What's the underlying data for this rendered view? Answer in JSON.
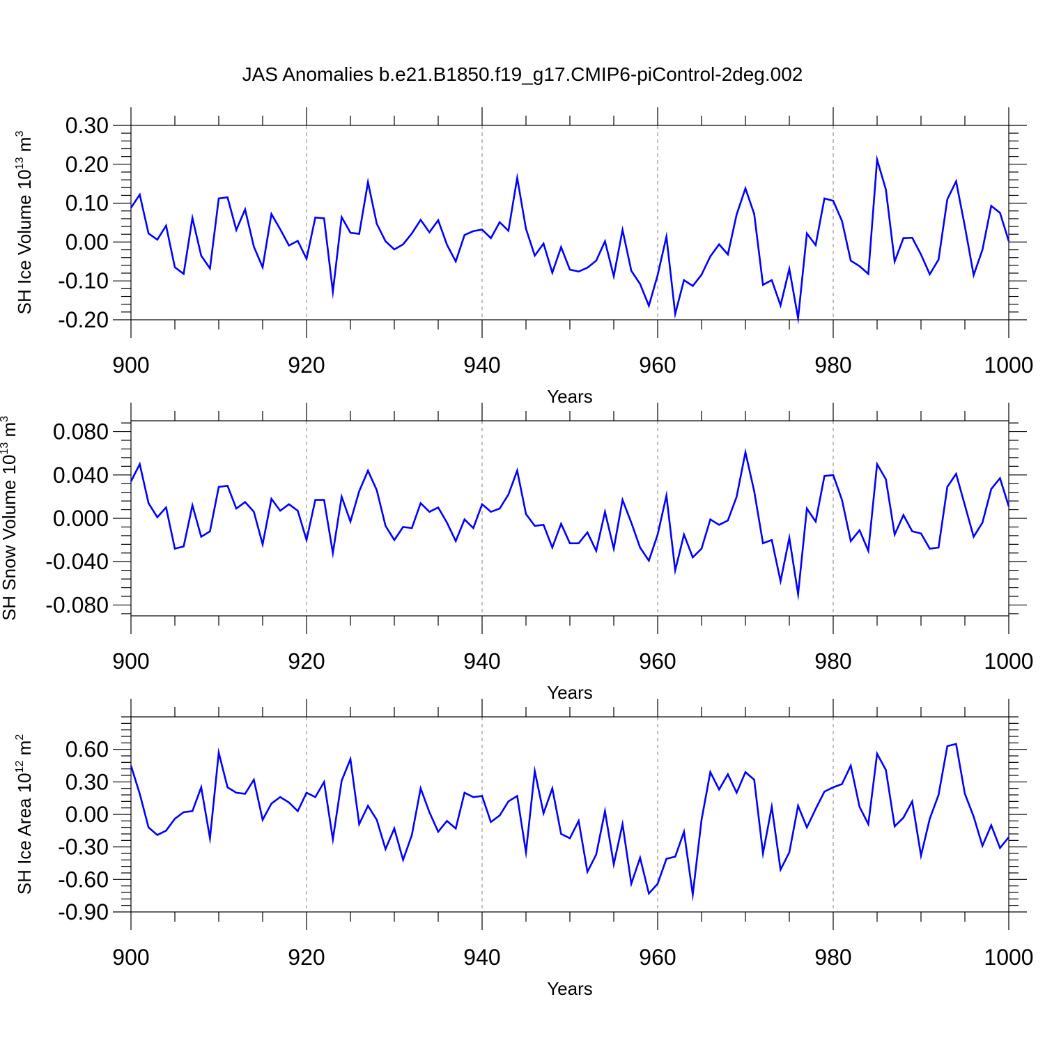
{
  "title": "JAS Anomalies b.e21.B1850.f19_g17.CMIP6-piControl-2deg.002",
  "colors": {
    "line": "#0000ff",
    "axes": "#000000",
    "grid": "#7f7f7f"
  },
  "chart_data": [
    {
      "type": "line",
      "ylabel": {
        "main": "SH Ice Volume 10",
        "sup": "13",
        "unit": " m",
        "unit_sup": "3"
      },
      "xlabel": "Years",
      "xlim": [
        900,
        1000
      ],
      "ylim": [
        -0.2,
        0.3
      ],
      "yticks": [
        "-0.20",
        "-0.10",
        "0.00",
        "0.10",
        "0.20",
        "0.30"
      ],
      "ytick_values": [
        -0.2,
        -0.1,
        0.0,
        0.1,
        0.2,
        0.3
      ],
      "xticks": [
        "900",
        "920",
        "940",
        "960",
        "980",
        "1000"
      ],
      "xtick_values": [
        900,
        920,
        940,
        960,
        980,
        1000
      ],
      "grid": "vertical dashed at labeled x ticks",
      "series": [
        {
          "x_start": 900,
          "values": [
            0.088,
            0.122,
            0.022,
            0.006,
            0.042,
            -0.065,
            -0.082,
            0.062,
            -0.035,
            -0.068,
            0.112,
            0.115,
            0.031,
            0.084,
            -0.012,
            -0.065,
            0.072,
            0.033,
            -0.009,
            0.003,
            -0.043,
            0.063,
            0.061,
            -0.128,
            0.064,
            0.024,
            0.021,
            0.154,
            0.047,
            0.002,
            -0.019,
            -0.006,
            0.022,
            0.057,
            0.025,
            0.056,
            -0.007,
            -0.05,
            0.018,
            0.028,
            0.032,
            0.01,
            0.051,
            0.029,
            0.165,
            0.034,
            -0.035,
            -0.004,
            -0.079,
            -0.013,
            -0.071,
            -0.076,
            -0.066,
            -0.048,
            0.002,
            -0.088,
            0.031,
            -0.074,
            -0.108,
            -0.164,
            -0.085,
            0.014,
            -0.185,
            -0.098,
            -0.113,
            -0.084,
            -0.037,
            -0.006,
            -0.032,
            0.071,
            0.138,
            0.072,
            -0.11,
            -0.098,
            -0.163,
            -0.069,
            -0.196,
            0.022,
            -0.008,
            0.112,
            0.106,
            0.054,
            -0.048,
            -0.062,
            -0.082,
            0.212,
            0.135,
            -0.05,
            0.01,
            0.011,
            -0.032,
            -0.083,
            -0.045,
            0.11,
            0.156,
            0.04,
            -0.085,
            -0.02,
            0.093,
            0.075,
            0.002
          ]
        }
      ]
    },
    {
      "type": "line",
      "ylabel": {
        "main": "SH Snow Volume 10",
        "sup": "13",
        "unit": " m",
        "unit_sup": "3"
      },
      "xlabel": "Years",
      "xlim": [
        900,
        1000
      ],
      "ylim": [
        -0.09,
        0.09
      ],
      "yticks": [
        "-0.080",
        "-0.040",
        "0.000",
        "0.040",
        "0.080"
      ],
      "ytick_values": [
        -0.08,
        -0.04,
        0.0,
        0.04,
        0.08
      ],
      "xticks": [
        "900",
        "920",
        "940",
        "960",
        "980",
        "1000"
      ],
      "xtick_values": [
        900,
        920,
        940,
        960,
        980,
        1000
      ],
      "grid": "vertical dashed at labeled x ticks",
      "series": [
        {
          "x_start": 900,
          "values": [
            0.034,
            0.05,
            0.014,
            0.001,
            0.01,
            -0.028,
            -0.026,
            0.012,
            -0.017,
            -0.012,
            0.029,
            0.03,
            0.009,
            0.015,
            0.006,
            -0.024,
            0.018,
            0.007,
            0.013,
            0.007,
            -0.02,
            0.017,
            0.017,
            -0.032,
            0.02,
            -0.003,
            0.025,
            0.044,
            0.026,
            -0.007,
            -0.02,
            -0.008,
            -0.009,
            0.014,
            0.006,
            0.01,
            -0.004,
            -0.021,
            -0.001,
            -0.009,
            0.013,
            0.006,
            0.009,
            0.022,
            0.044,
            0.004,
            -0.007,
            -0.006,
            -0.027,
            -0.005,
            -0.023,
            -0.023,
            -0.013,
            -0.03,
            0.006,
            -0.028,
            0.017,
            -0.004,
            -0.027,
            -0.039,
            -0.015,
            0.021,
            -0.048,
            -0.015,
            -0.036,
            -0.028,
            -0.001,
            -0.006,
            -0.002,
            0.02,
            0.061,
            0.025,
            -0.023,
            -0.02,
            -0.058,
            -0.018,
            -0.07,
            0.009,
            -0.003,
            0.039,
            0.04,
            0.017,
            -0.021,
            -0.011,
            -0.03,
            0.05,
            0.036,
            -0.015,
            0.003,
            -0.012,
            -0.014,
            -0.028,
            -0.027,
            0.029,
            0.041,
            0.012,
            -0.017,
            -0.004,
            0.027,
            0.037,
            0.011
          ]
        }
      ]
    },
    {
      "type": "line",
      "ylabel": {
        "main": "SH Ice Area 10",
        "sup": "12",
        "unit": " m",
        "unit_sup": "2"
      },
      "xlabel": "Years",
      "xlim": [
        900,
        1000
      ],
      "ylim": [
        -0.9,
        0.9
      ],
      "yticks": [
        "-0.90",
        "-0.60",
        "-0.30",
        "0.00",
        "0.30",
        "0.60"
      ],
      "ytick_values": [
        -0.9,
        -0.6,
        -0.3,
        0.0,
        0.3,
        0.6
      ],
      "xticks": [
        "900",
        "920",
        "940",
        "960",
        "980",
        "1000"
      ],
      "xtick_values": [
        900,
        920,
        940,
        960,
        980,
        1000
      ],
      "grid": "vertical dashed at labeled x ticks",
      "series": [
        {
          "x_start": 900,
          "values": [
            0.45,
            0.19,
            -0.12,
            -0.19,
            -0.15,
            -0.04,
            0.02,
            0.03,
            0.25,
            -0.22,
            0.57,
            0.25,
            0.2,
            0.19,
            0.32,
            -0.05,
            0.1,
            0.16,
            0.11,
            0.03,
            0.2,
            0.16,
            0.3,
            -0.23,
            0.31,
            0.51,
            -0.09,
            0.08,
            -0.05,
            -0.32,
            -0.13,
            -0.42,
            -0.19,
            0.24,
            0.02,
            -0.16,
            -0.06,
            -0.13,
            0.2,
            0.16,
            0.17,
            -0.07,
            -0.01,
            0.12,
            0.17,
            -0.35,
            0.4,
            0.01,
            0.24,
            -0.18,
            -0.22,
            -0.06,
            -0.53,
            -0.37,
            0.03,
            -0.46,
            -0.09,
            -0.64,
            -0.4,
            -0.73,
            -0.64,
            -0.41,
            -0.39,
            -0.16,
            -0.74,
            -0.05,
            0.39,
            0.23,
            0.37,
            0.2,
            0.39,
            0.32,
            -0.36,
            0.07,
            -0.51,
            -0.35,
            0.08,
            -0.12,
            0.05,
            0.21,
            0.25,
            0.28,
            0.45,
            0.07,
            -0.09,
            0.56,
            0.41,
            -0.11,
            -0.03,
            0.12,
            -0.38,
            -0.04,
            0.18,
            0.63,
            0.65,
            0.19,
            -0.02,
            -0.29,
            -0.1,
            -0.31,
            -0.21
          ]
        }
      ]
    }
  ]
}
